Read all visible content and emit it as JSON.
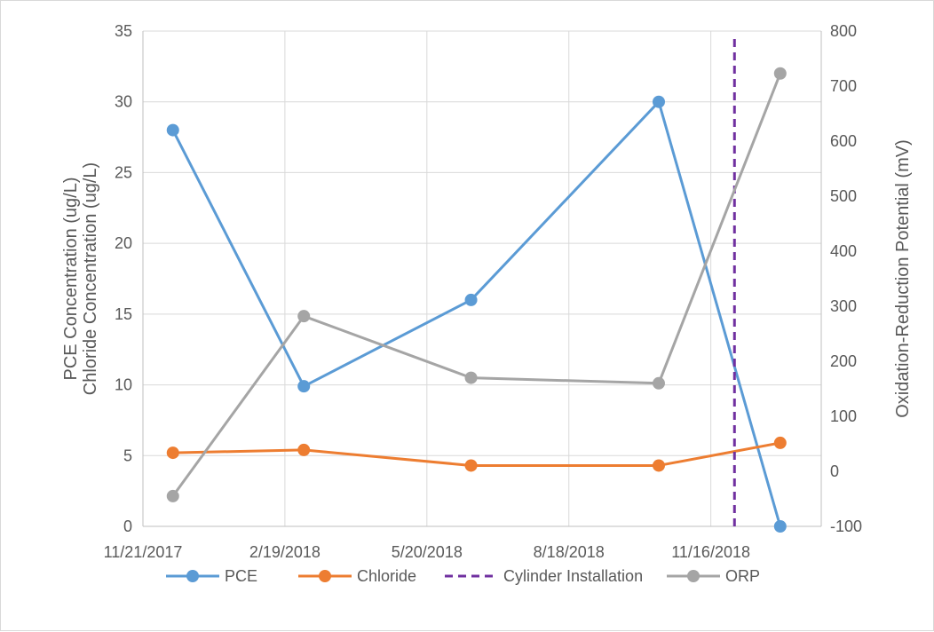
{
  "chart_data": {
    "type": "line",
    "title": "",
    "xlabel": "",
    "ylabel": [
      "PCE Concentration (ug/L)",
      "Chloride Concentration (ug/L)"
    ],
    "y2label": "Oxidation-Reduction Potential (mV)",
    "x_ticks": [
      "11/21/2017",
      "2/19/2018",
      "5/20/2018",
      "8/18/2018",
      "11/16/2018"
    ],
    "x_tick_values": [
      "2017-11-21",
      "2018-02-19",
      "2018-05-20",
      "2018-08-18",
      "2018-11-16"
    ],
    "xlim": [
      "2017-11-21",
      "2019-01-25"
    ],
    "ylim": [
      0,
      35
    ],
    "y_ticks": [
      0,
      5,
      10,
      15,
      20,
      25,
      30,
      35
    ],
    "y2lim": [
      -100,
      800
    ],
    "y2_ticks": [
      -100,
      0,
      100,
      200,
      300,
      400,
      500,
      600,
      700,
      800
    ],
    "grid": true,
    "legend_position": "bottom",
    "series": [
      {
        "name": "PCE",
        "axis": "left",
        "color": "#5b9bd5",
        "marker": "circle",
        "x": [
          "2017-12-10",
          "2018-03-03",
          "2018-06-17",
          "2018-10-14",
          "2018-12-30"
        ],
        "y": [
          28,
          9.9,
          16,
          30,
          0
        ]
      },
      {
        "name": "Chloride",
        "axis": "left",
        "color": "#ed7d31",
        "marker": "circle",
        "x": [
          "2017-12-10",
          "2018-03-03",
          "2018-06-17",
          "2018-10-14",
          "2018-12-30"
        ],
        "y": [
          5.2,
          5.4,
          4.3,
          4.3,
          5.9
        ]
      },
      {
        "name": "Cylinder Installation",
        "axis": "left",
        "color": "#7030a0",
        "style": "dashed",
        "x": [
          "2018-12-01",
          "2018-12-01"
        ],
        "y": [
          0,
          34.5
        ]
      },
      {
        "name": "ORP",
        "axis": "right",
        "color": "#a5a5a5",
        "marker": "circle",
        "x": [
          "2017-12-10",
          "2018-03-03",
          "2018-06-17",
          "2018-10-14",
          "2018-12-30"
        ],
        "y": [
          -45,
          282,
          170,
          160,
          723
        ]
      }
    ]
  }
}
